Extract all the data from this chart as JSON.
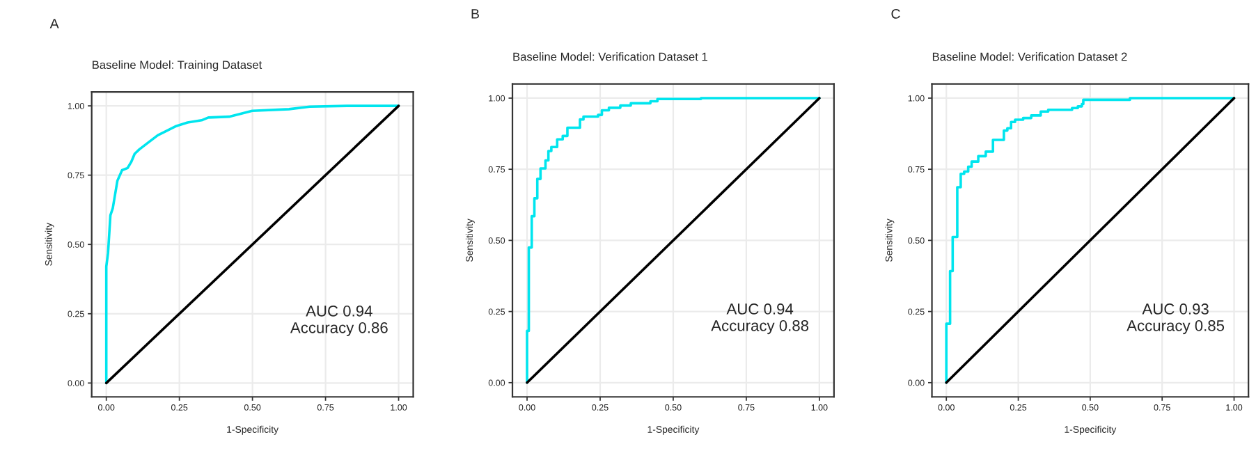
{
  "chart_data": [
    {
      "type": "line",
      "title": "Baseline Model: Training Dataset",
      "xlabel": "1-Specificity",
      "ylabel": "Sensitivity",
      "annotations": [
        "A",
        "AUC 0.94\nAccuracy 0.86"
      ],
      "xlim": [
        -0.05,
        1.05
      ],
      "ylim": [
        -0.05,
        1.05
      ],
      "xticks": [
        {
          "value": 0,
          "label": "0.00"
        },
        {
          "value": 0.25,
          "label": "0.25"
        },
        {
          "value": 0.5,
          "label": "0.50"
        },
        {
          "value": 0.75,
          "label": "0.75"
        },
        {
          "value": 1,
          "label": "1.00"
        }
      ],
      "yticks": [
        {
          "value": 0,
          "label": "0.00"
        },
        {
          "value": 0.25,
          "label": "0.25"
        },
        {
          "value": 0.5,
          "label": "0.50"
        },
        {
          "value": 0.75,
          "label": "0.75"
        },
        {
          "value": 1,
          "label": "1.00"
        }
      ],
      "grid": true,
      "legend": false,
      "series": [
        {
          "color": "#00e5ee",
          "x": [
            0,
            0,
            0.006,
            0.014,
            0.022,
            0.03,
            0.038,
            0.054,
            0.073,
            0.085,
            0.097,
            0.113,
            0.144,
            0.176,
            0.207,
            0.239,
            0.278,
            0.326,
            0.349,
            0.42,
            0.499,
            0.625,
            0.696,
            0.823,
            1
          ],
          "values": [
            0,
            0.42,
            0.47,
            0.605,
            0.63,
            0.68,
            0.73,
            0.768,
            0.776,
            0.797,
            0.827,
            0.843,
            0.868,
            0.894,
            0.91,
            0.927,
            0.94,
            0.948,
            0.958,
            0.961,
            0.982,
            0.988,
            0.997,
            1,
            1
          ]
        },
        {
          "color": "#000000",
          "x": [
            0,
            1
          ],
          "values": [
            0,
            1
          ]
        }
      ]
    },
    {
      "type": "line",
      "title": "Baseline Model: Verification Dataset 1",
      "xlabel": "1-Specificity",
      "ylabel": "Sensitivity",
      "annotations": [
        "B",
        "AUC 0.94\nAccuracy 0.88"
      ],
      "xlim": [
        -0.05,
        1.05
      ],
      "ylim": [
        -0.05,
        1.05
      ],
      "xticks": [
        {
          "value": 0,
          "label": "0.00"
        },
        {
          "value": 0.25,
          "label": "0.25"
        },
        {
          "value": 0.5,
          "label": "0.50"
        },
        {
          "value": 0.75,
          "label": "0.75"
        },
        {
          "value": 1,
          "label": "1.00"
        }
      ],
      "yticks": [
        {
          "value": 0,
          "label": "0.00"
        },
        {
          "value": 0.25,
          "label": "0.25"
        },
        {
          "value": 0.5,
          "label": "0.50"
        },
        {
          "value": 0.75,
          "label": "0.75"
        },
        {
          "value": 1,
          "label": "1.00"
        }
      ],
      "grid": true,
      "legend": false,
      "series": [
        {
          "type": "step",
          "color": "#00e5ee",
          "x": [
            0,
            0.006,
            0.016,
            0.025,
            0.035,
            0.046,
            0.063,
            0.073,
            0.083,
            0.103,
            0.122,
            0.138,
            0.181,
            0.193,
            0.243,
            0.256,
            0.28,
            0.319,
            0.355,
            0.422,
            0.446,
            0.595,
            1
          ],
          "values": [
            0,
            0.182,
            0.475,
            0.585,
            0.648,
            0.716,
            0.753,
            0.781,
            0.814,
            0.828,
            0.855,
            0.867,
            0.896,
            0.925,
            0.935,
            0.941,
            0.957,
            0.966,
            0.974,
            0.982,
            0.989,
            0.997,
            1
          ]
        },
        {
          "color": "#000000",
          "x": [
            0,
            1
          ],
          "values": [
            0,
            1
          ]
        }
      ]
    },
    {
      "type": "line",
      "title": "Baseline Model: Verification Dataset 2",
      "xlabel": "1-Specificity",
      "ylabel": "Sensitivity",
      "annotations": [
        "C",
        "AUC 0.93\nAccuracy 0.85"
      ],
      "xlim": [
        -0.05,
        1.05
      ],
      "ylim": [
        -0.05,
        1.05
      ],
      "xticks": [
        {
          "value": 0,
          "label": "0.00"
        },
        {
          "value": 0.25,
          "label": "0.25"
        },
        {
          "value": 0.5,
          "label": "0.50"
        },
        {
          "value": 0.75,
          "label": "0.75"
        },
        {
          "value": 1,
          "label": "1.00"
        }
      ],
      "yticks": [
        {
          "value": 0,
          "label": "0.00"
        },
        {
          "value": 0.25,
          "label": "0.25"
        },
        {
          "value": 0.5,
          "label": "0.50"
        },
        {
          "value": 0.75,
          "label": "0.75"
        },
        {
          "value": 1,
          "label": "1.00"
        }
      ],
      "grid": true,
      "legend": false,
      "series": [
        {
          "type": "step",
          "color": "#00e5ee",
          "x": [
            0,
            0.013,
            0.022,
            0.038,
            0.05,
            0.062,
            0.076,
            0.088,
            0.111,
            0.137,
            0.162,
            0.2,
            0.212,
            0.225,
            0.239,
            0.267,
            0.295,
            0.328,
            0.354,
            0.437,
            0.457,
            0.471,
            0.476,
            0.638,
            1
          ],
          "values": [
            0,
            0.207,
            0.392,
            0.512,
            0.687,
            0.734,
            0.742,
            0.759,
            0.777,
            0.796,
            0.812,
            0.853,
            0.886,
            0.894,
            0.916,
            0.924,
            0.93,
            0.939,
            0.953,
            0.959,
            0.965,
            0.971,
            0.979,
            0.994,
            1
          ]
        },
        {
          "color": "#000000",
          "x": [
            0,
            1
          ],
          "values": [
            0,
            1
          ]
        }
      ]
    }
  ]
}
